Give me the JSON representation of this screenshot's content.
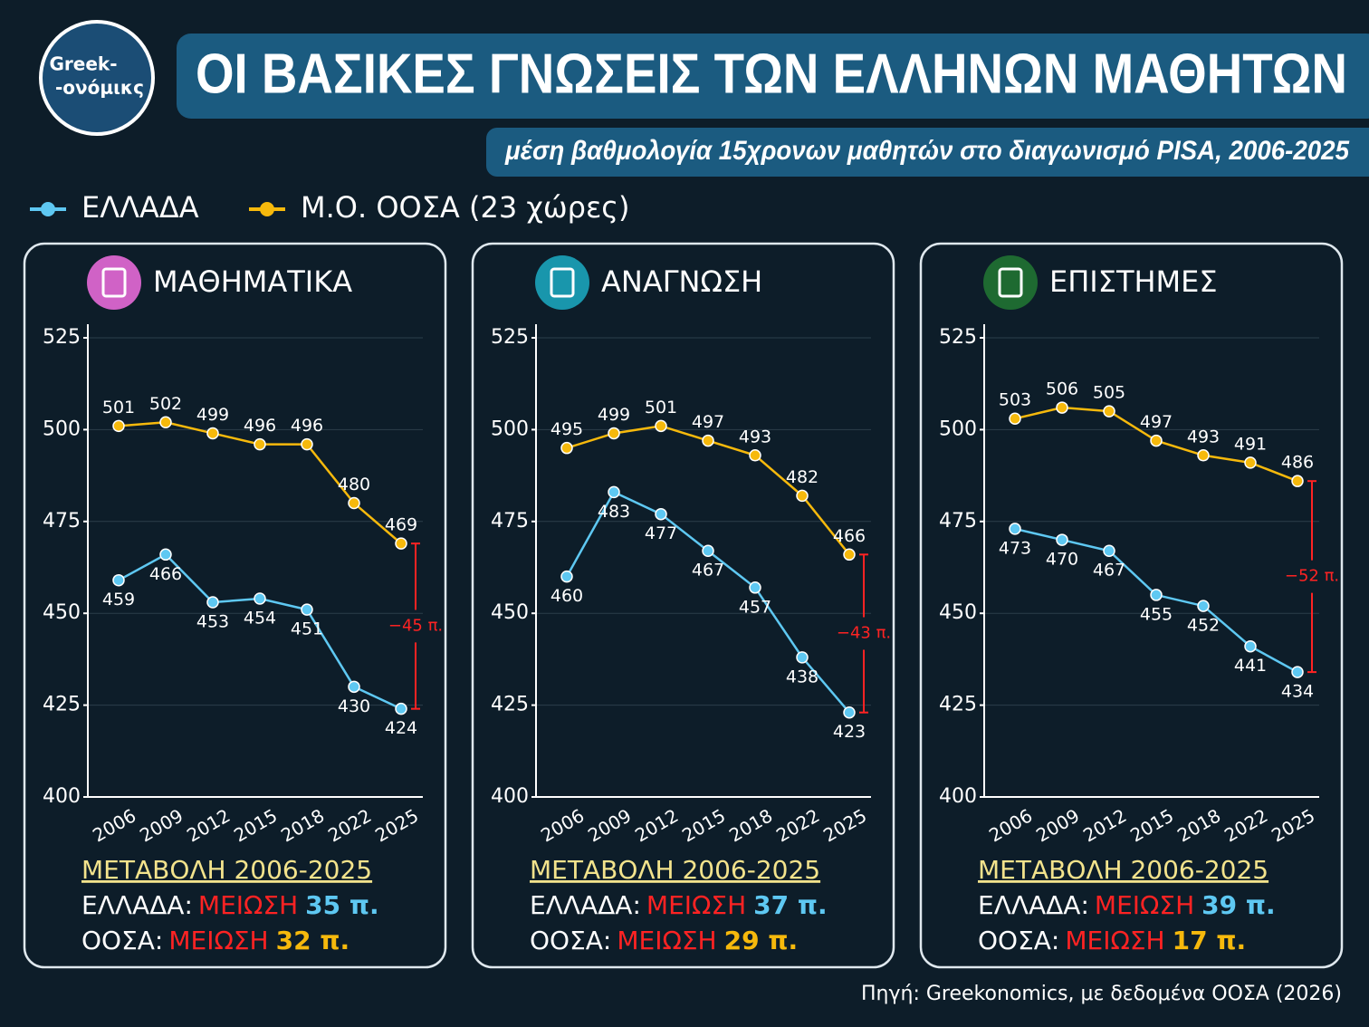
{
  "title": "ΟΙ ΒΑΣΙΚΕΣ ΓΝΩΣΕΙΣ ΤΩΝ ΕΛΛΗΝΩΝ ΜΑΘΗΤΩΝ",
  "subtitle": "μέση βαθμολογία 15χρονων μαθητών στο διαγωνισμό PISA, 2006-2025",
  "logo": [
    "Greek-",
    "-ονόμικς"
  ],
  "source": "Πηγή: Greekonomics, με δεδομένα ΟΟΣΑ (2026)",
  "chart_data": [
    {
      "type": "line",
      "title": "ΜΑΘΗΜΑΤΙΚΑ",
      "categories": [
        "2006",
        "2009",
        "2012",
        "2015",
        "2018",
        "2022",
        "2025"
      ],
      "ylim": [
        400,
        525
      ],
      "yticks": [
        400,
        425,
        450,
        475,
        500,
        525
      ],
      "grid": true,
      "series": [
        {
          "name": "ΕΛΛΑΔΑ",
          "color": "#5ec8f2",
          "values": [
            459,
            466,
            453,
            454,
            451,
            430,
            424
          ]
        },
        {
          "name": "Μ.Ο. ΟΟΣΑ (23 χώρες)",
          "color": "#f6b90c",
          "values": [
            501,
            502,
            499,
            496,
            496,
            480,
            469
          ]
        }
      ],
      "gap_label": "−45 π.",
      "summary": {
        "heading": "ΜΕΤΑΒΟΛΗ 2006-2025",
        "rows": [
          {
            "label": "ΕΛΛΑΔΑ:",
            "change": "ΜΕΙΩΣΗ",
            "amount": "35 π."
          },
          {
            "label": "ΟΟΣΑ:",
            "change": "ΜΕΙΩΣΗ",
            "amount": "32 π."
          }
        ]
      }
    },
    {
      "type": "line",
      "title": "ΑΝΑΓΝΩΣΗ",
      "categories": [
        "2006",
        "2009",
        "2012",
        "2015",
        "2018",
        "2022",
        "2025"
      ],
      "ylim": [
        400,
        525
      ],
      "yticks": [
        400,
        425,
        450,
        475,
        500,
        525
      ],
      "grid": true,
      "series": [
        {
          "color": "#5ec8f2",
          "values": [
            460,
            483,
            477,
            467,
            457,
            438,
            423
          ]
        },
        {
          "color": "#f6b90c",
          "values": [
            495,
            499,
            501,
            497,
            493,
            482,
            466
          ]
        }
      ],
      "gap_label": "−43 π.",
      "summary": {
        "heading": "ΜΕΤΑΒΟΛΗ 2006-2025",
        "rows": [
          {
            "label": "ΕΛΛΑΔΑ:",
            "change": "ΜΕΙΩΣΗ",
            "amount": "37 π."
          },
          {
            "label": "ΟΟΣΑ:",
            "change": "ΜΕΙΩΣΗ",
            "amount": "29 π."
          }
        ]
      }
    },
    {
      "type": "line",
      "title": "ΕΠΙΣΤΗΜΕΣ",
      "categories": [
        "2006",
        "2009",
        "2012",
        "2015",
        "2018",
        "2022",
        "2025"
      ],
      "ylim": [
        400,
        525
      ],
      "yticks": [
        400,
        425,
        450,
        475,
        500,
        525
      ],
      "grid": true,
      "series": [
        {
          "color": "#5ec8f2",
          "values": [
            473,
            470,
            467,
            455,
            452,
            441,
            434
          ]
        },
        {
          "color": "#f6b90c",
          "values": [
            503,
            506,
            505,
            497,
            493,
            491,
            486
          ]
        }
      ],
      "gap_label": "−52 π.",
      "summary": {
        "heading": "ΜΕΤΑΒΟΛΗ 2006-2025",
        "rows": [
          {
            "label": "ΕΛΛΑΔΑ:",
            "change": "ΜΕΙΩΣΗ",
            "amount": "39 π."
          },
          {
            "label": "ΟΟΣΑ:",
            "change": "ΜΕΙΩΣΗ",
            "amount": "17 π."
          }
        ]
      }
    }
  ]
}
